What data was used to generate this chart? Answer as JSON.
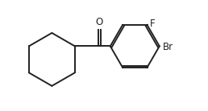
{
  "background_color": "#ffffff",
  "line_color": "#222222",
  "line_width": 1.4,
  "text_color": "#222222",
  "font_size": 8.5,
  "label_F": "F",
  "label_Br": "Br",
  "label_O": "O",
  "figsize": [
    2.58,
    1.38
  ],
  "dpi": 100,
  "xlim": [
    0,
    9.5
  ],
  "ylim": [
    0.2,
    5.8
  ]
}
